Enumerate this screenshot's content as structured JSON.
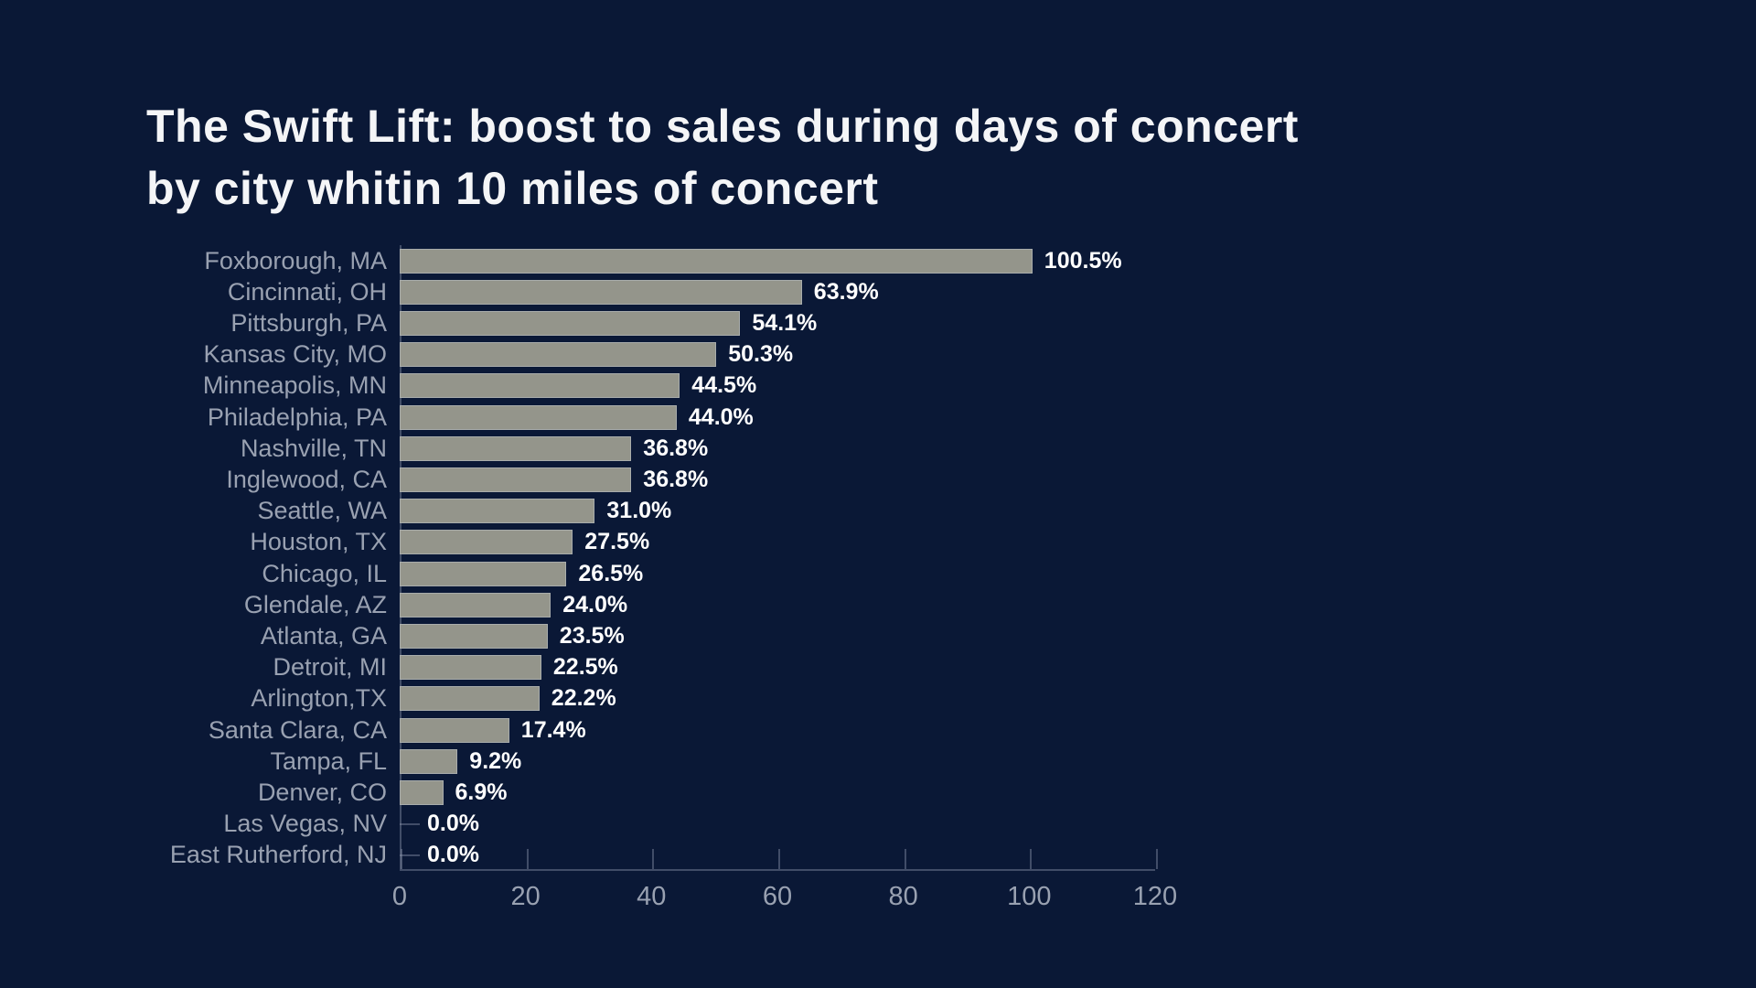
{
  "title": {
    "line1": "The Swift Lift: boost to sales during days of concert",
    "line2": "by city whitin 10 miles of concert"
  },
  "chart_data": {
    "type": "bar",
    "orientation": "horizontal",
    "title": "The Swift Lift: boost to sales during days of concert by city whitin 10 miles of concert",
    "categories": [
      "Foxborough, MA",
      "Cincinnati, OH",
      "Pittsburgh, PA",
      "Kansas City, MO",
      "Minneapolis, MN",
      "Philadelphia, PA",
      "Nashville, TN",
      "Inglewood, CA",
      "Seattle, WA",
      "Houston, TX",
      "Chicago, IL",
      "Glendale, AZ",
      "Atlanta, GA",
      "Detroit, MI",
      "Arlington,TX",
      "Santa Clara, CA",
      "Tampa, FL",
      "Denver, CO",
      "Las Vegas, NV",
      "East Rutherford, NJ"
    ],
    "values": [
      100.5,
      63.9,
      54.1,
      50.3,
      44.5,
      44.0,
      36.8,
      36.8,
      31.0,
      27.5,
      26.5,
      24.0,
      23.5,
      22.5,
      22.2,
      17.4,
      9.2,
      6.9,
      0.0,
      0.0
    ],
    "value_labels": [
      "100.5%",
      "63.9%",
      "54.1%",
      "50.3%",
      "44.5%",
      "44.0%",
      "36.8%",
      "36.8%",
      "31.0%",
      "27.5%",
      "26.5%",
      "24.0%",
      "23.5%",
      "22.5%",
      "22.2%",
      "17.4%",
      "9.2%",
      "6.9%",
      "0.0%",
      "0.0%"
    ],
    "xlabel": "",
    "ylabel": "",
    "xlim": [
      0,
      120
    ],
    "x_ticks": [
      0,
      20,
      40,
      60,
      80,
      100,
      120
    ],
    "grid": false,
    "legend": false,
    "colors": {
      "background": "#0a1836",
      "bar": "#94958b",
      "bar_edge": "#cbd1e0",
      "title_text": "#f4f5f7",
      "category_label": "#99a1b1",
      "value_label": "#ffffff",
      "axis_line": "#949eb4",
      "tick_label": "#99a1b1"
    }
  }
}
